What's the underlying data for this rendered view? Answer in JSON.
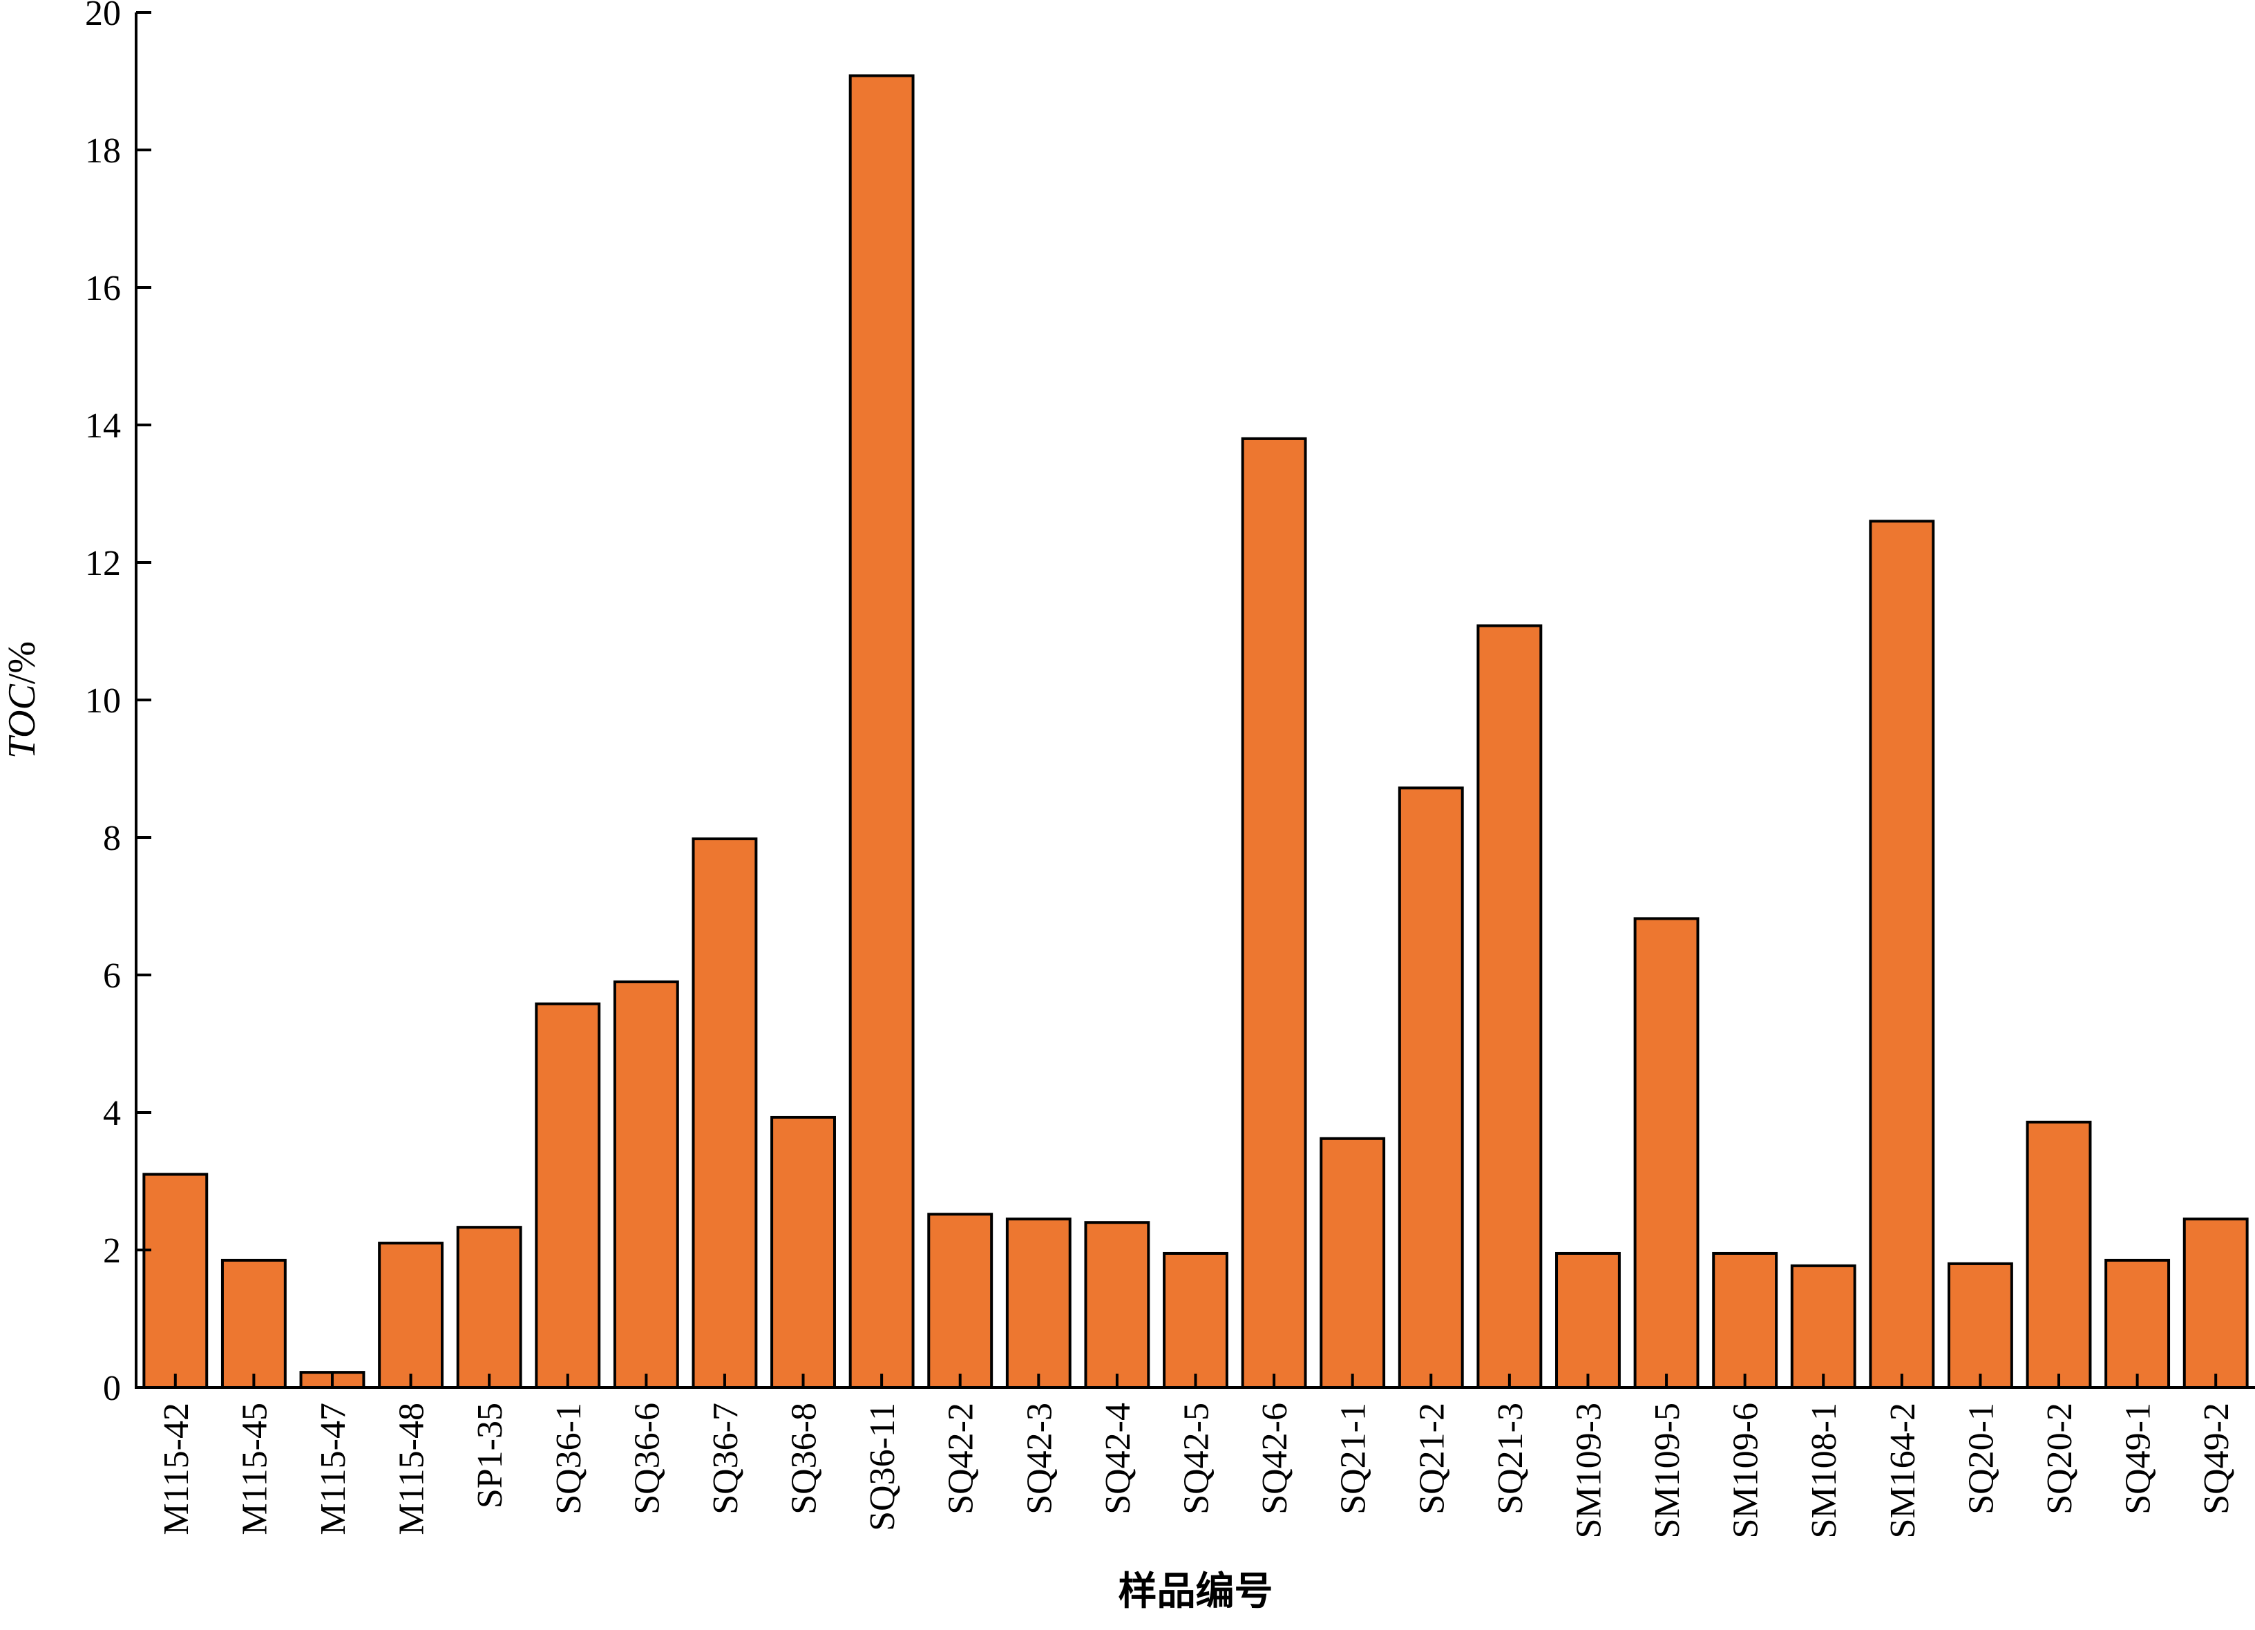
{
  "chart_data": {
    "type": "bar",
    "categories": [
      "M115-42",
      "M115-45",
      "M115-47",
      "M115-48",
      "SP1-35",
      "SQ36-1",
      "SQ36-6",
      "SQ36-7",
      "SQ36-8",
      "SQ36-11",
      "SQ42-2",
      "SQ42-3",
      "SQ42-4",
      "SQ42-5",
      "SQ42-6",
      "SQ21-1",
      "SQ21-2",
      "SQ21-3",
      "SM109-3",
      "SM109-5",
      "SM109-6",
      "SM108-1",
      "SM164-2",
      "SQ20-1",
      "SQ20-2",
      "SQ49-1",
      "SQ49-2"
    ],
    "values": [
      3.1,
      1.85,
      0.22,
      2.1,
      2.33,
      5.58,
      5.9,
      7.98,
      3.93,
      19.08,
      2.52,
      2.45,
      2.4,
      1.95,
      13.8,
      3.62,
      8.72,
      11.08,
      1.95,
      6.82,
      1.95,
      1.77,
      12.6,
      1.8,
      3.86,
      1.85,
      2.45
    ],
    "xlabel": "样品编号",
    "ylabel_italic": "TOC",
    "ylabel_unit": "/%",
    "ylim": [
      0,
      20
    ],
    "yticks": [
      0,
      2,
      4,
      6,
      8,
      10,
      12,
      14,
      16,
      18,
      20
    ],
    "bar_color": "#ed7730",
    "edge_color": "#000000",
    "grid": false
  }
}
